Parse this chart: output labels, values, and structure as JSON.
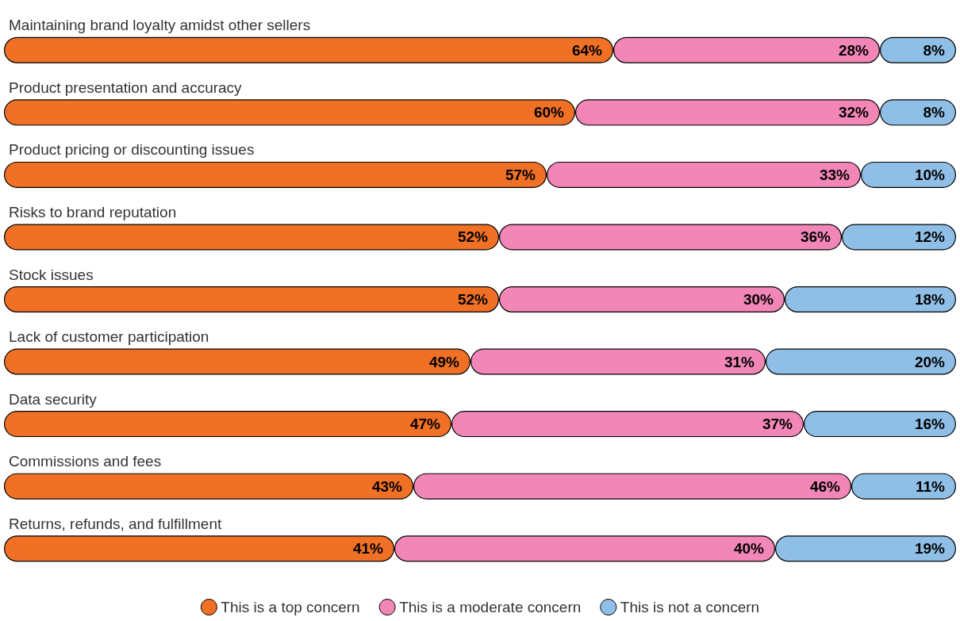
{
  "chart_data": {
    "type": "bar",
    "orientation": "horizontal",
    "stacked": true,
    "legend": "bottom",
    "categories": [
      "Maintaining brand loyalty amidst other sellers",
      "Product presentation and accuracy",
      "Product pricing or discounting issues",
      "Risks to brand reputation",
      "Stock issues",
      "Lack of customer participation",
      "Data security",
      "Commissions and fees",
      "Returns, refunds, and fulfillment"
    ],
    "series": [
      {
        "name": "This is a top concern",
        "color": "#f07026",
        "values": [
          64,
          60,
          57,
          52,
          52,
          49,
          47,
          43,
          41
        ],
        "value_labels": [
          "64%",
          "60%",
          "57%",
          "52%",
          "52%",
          "49%",
          "47%",
          "43%",
          "41%"
        ]
      },
      {
        "name": "This is a moderate concern",
        "color": "#f287b7",
        "values": [
          28,
          32,
          33,
          36,
          30,
          31,
          37,
          46,
          40
        ],
        "value_labels": [
          "28%",
          "32%",
          "33%",
          "36%",
          "30%",
          "31%",
          "37%",
          "46%",
          "40%"
        ]
      },
      {
        "name": "This is not a concern",
        "color": "#8fbfe6",
        "values": [
          8,
          8,
          10,
          12,
          18,
          20,
          16,
          11,
          19
        ],
        "value_labels": [
          "8%",
          "8%",
          "10%",
          "12%",
          "18%",
          "20%",
          "16%",
          "11%",
          "19%"
        ]
      }
    ]
  }
}
